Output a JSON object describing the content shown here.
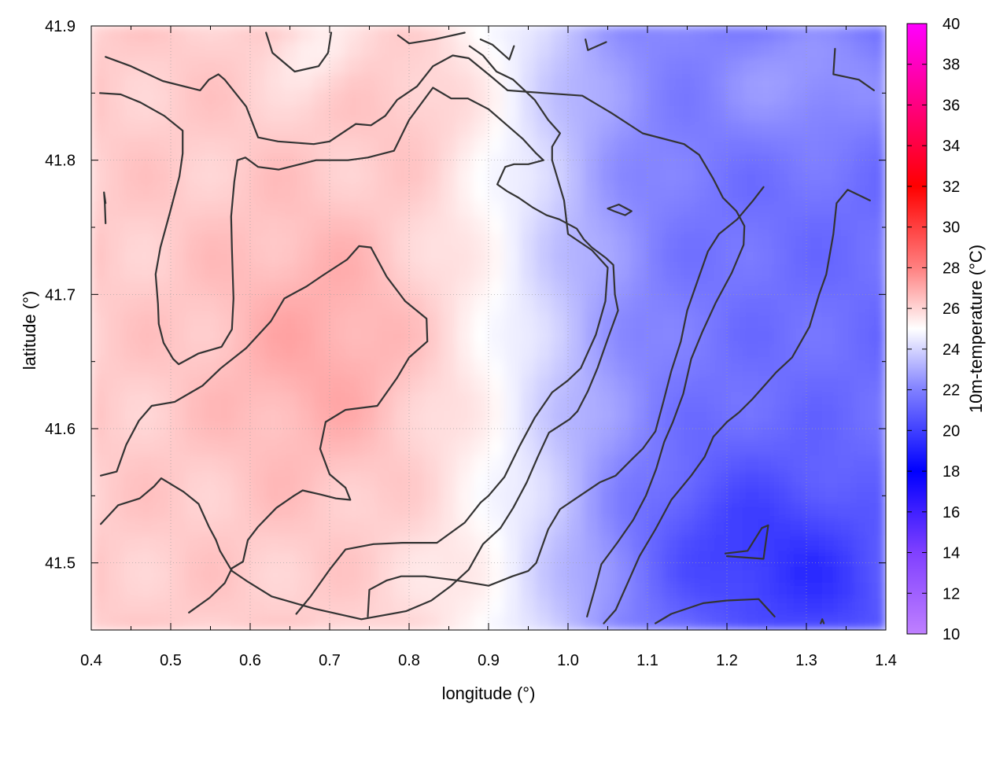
{
  "chart_data": {
    "type": "heatmap",
    "xlabel": "longitude (°)",
    "ylabel": "latitude (°)",
    "colorbar_label": "10m-temperature (°C)",
    "xlim": [
      0.4,
      1.4
    ],
    "ylim": [
      41.45,
      41.9
    ],
    "x_ticks": [
      0.4,
      0.5,
      0.6,
      0.7,
      0.8,
      0.9,
      1.0,
      1.1,
      1.2,
      1.3,
      1.4
    ],
    "x_tick_labels": [
      "0.4",
      "0.5",
      "0.6",
      "0.7",
      "0.8",
      "0.9",
      "1.0",
      "1.1",
      "1.2",
      "1.3",
      "1.4"
    ],
    "y_ticks": [
      41.5,
      41.6,
      41.7,
      41.8,
      41.9
    ],
    "y_tick_labels": [
      "41.5",
      "41.6",
      "41.7",
      "41.8",
      "41.9"
    ],
    "colorbar_range": [
      10,
      40
    ],
    "colorbar_ticks": [
      10,
      12,
      14,
      16,
      18,
      20,
      22,
      24,
      26,
      28,
      30,
      32,
      34,
      36,
      38,
      40
    ],
    "colorbar_tick_labels": [
      "10",
      "12",
      "14",
      "16",
      "18",
      "20",
      "22",
      "24",
      "26",
      "28",
      "30",
      "32",
      "34",
      "36",
      "38",
      "40"
    ],
    "colormap": [
      {
        "value": 10,
        "color": "#bf80ff"
      },
      {
        "value": 14,
        "color": "#8040ff"
      },
      {
        "value": 18,
        "color": "#0000ff"
      },
      {
        "value": 22,
        "color": "#8080ff"
      },
      {
        "value": 25,
        "color": "#ffffff"
      },
      {
        "value": 28,
        "color": "#ff8080"
      },
      {
        "value": 32,
        "color": "#ff0000"
      },
      {
        "value": 36,
        "color": "#ff0080"
      },
      {
        "value": 40,
        "color": "#ff00ff"
      }
    ],
    "grid": true,
    "legend": "colorbar-right",
    "contour_color": "#333333",
    "contours": [
      [
        [
          0.418,
          41.877
        ],
        [
          0.45,
          41.87
        ],
        [
          0.49,
          41.859
        ],
        [
          0.537,
          41.852
        ],
        [
          0.548,
          41.86
        ],
        [
          0.56,
          41.864
        ],
        [
          0.568,
          41.86
        ],
        [
          0.595,
          41.84
        ],
        [
          0.61,
          41.817
        ],
        [
          0.635,
          41.814
        ],
        [
          0.68,
          41.812
        ],
        [
          0.7,
          41.814
        ],
        [
          0.733,
          41.827
        ],
        [
          0.752,
          41.826
        ],
        [
          0.77,
          41.833
        ],
        [
          0.785,
          41.845
        ],
        [
          0.81,
          41.855
        ],
        [
          0.83,
          41.87
        ],
        [
          0.855,
          41.878
        ],
        [
          0.875,
          41.876
        ],
        [
          0.904,
          41.862
        ],
        [
          0.924,
          41.852
        ],
        [
          0.97,
          41.85
        ],
        [
          1.018,
          41.848
        ],
        [
          1.055,
          41.835
        ],
        [
          1.094,
          41.82
        ],
        [
          1.146,
          41.812
        ],
        [
          1.165,
          41.804
        ],
        [
          1.183,
          41.786
        ],
        [
          1.195,
          41.772
        ],
        [
          1.212,
          41.762
        ],
        [
          1.222,
          41.751
        ],
        [
          1.221,
          41.737
        ],
        [
          1.206,
          41.716
        ],
        [
          1.186,
          41.694
        ],
        [
          1.169,
          41.672
        ],
        [
          1.155,
          41.652
        ],
        [
          1.145,
          41.626
        ],
        [
          1.132,
          41.605
        ],
        [
          1.121,
          41.59
        ],
        [
          1.111,
          41.57
        ],
        [
          1.098,
          41.55
        ],
        [
          1.082,
          41.532
        ],
        [
          1.062,
          41.515
        ],
        [
          1.042,
          41.499
        ],
        [
          1.034,
          41.481
        ],
        [
          1.024,
          41.46
        ]
      ],
      [
        [
          0.411,
          41.85
        ],
        [
          0.437,
          41.849
        ],
        [
          0.462,
          41.843
        ],
        [
          0.492,
          41.833
        ],
        [
          0.515,
          41.822
        ],
        [
          0.515,
          41.805
        ],
        [
          0.511,
          41.788
        ],
        [
          0.499,
          41.761
        ],
        [
          0.487,
          41.735
        ],
        [
          0.481,
          41.715
        ],
        [
          0.484,
          41.693
        ],
        [
          0.485,
          41.678
        ],
        [
          0.491,
          41.664
        ],
        [
          0.503,
          41.652
        ],
        [
          0.51,
          41.648
        ],
        [
          0.535,
          41.656
        ],
        [
          0.564,
          41.661
        ],
        [
          0.577,
          41.674
        ],
        [
          0.579,
          41.697
        ],
        [
          0.577,
          41.734
        ],
        [
          0.576,
          41.758
        ],
        [
          0.58,
          41.784
        ],
        [
          0.584,
          41.8
        ],
        [
          0.594,
          41.802
        ],
        [
          0.61,
          41.795
        ],
        [
          0.636,
          41.793
        ],
        [
          0.683,
          41.8
        ],
        [
          0.723,
          41.8
        ],
        [
          0.748,
          41.802
        ],
        [
          0.781,
          41.807
        ],
        [
          0.8,
          41.83
        ],
        [
          0.83,
          41.854
        ],
        [
          0.853,
          41.846
        ],
        [
          0.874,
          41.846
        ],
        [
          0.9,
          41.838
        ],
        [
          0.943,
          41.816
        ],
        [
          0.96,
          41.805
        ],
        [
          0.969,
          41.8
        ],
        [
          0.95,
          41.797
        ],
        [
          0.932,
          41.797
        ],
        [
          0.921,
          41.795
        ],
        [
          0.911,
          41.782
        ],
        [
          0.923,
          41.777
        ],
        [
          0.938,
          41.772
        ],
        [
          0.955,
          41.765
        ],
        [
          0.973,
          41.759
        ],
        [
          0.989,
          41.756
        ],
        [
          1.011,
          41.749
        ],
        [
          1.02,
          41.741
        ],
        [
          1.03,
          41.735
        ],
        [
          1.048,
          41.727
        ],
        [
          1.057,
          41.722
        ],
        [
          1.059,
          41.7
        ],
        [
          1.063,
          41.688
        ],
        [
          1.05,
          41.667
        ],
        [
          1.037,
          41.645
        ],
        [
          1.025,
          41.628
        ],
        [
          1.012,
          41.613
        ],
        [
          1.002,
          41.607
        ],
        [
          0.976,
          41.597
        ],
        [
          0.962,
          41.579
        ],
        [
          0.948,
          41.56
        ],
        [
          0.931,
          41.541
        ],
        [
          0.915,
          41.526
        ],
        [
          0.893,
          41.514
        ],
        [
          0.875,
          41.495
        ],
        [
          0.853,
          41.483
        ],
        [
          0.828,
          41.472
        ],
        [
          0.796,
          41.464
        ],
        [
          0.74,
          41.458
        ],
        [
          0.68,
          41.466
        ],
        [
          0.627,
          41.475
        ],
        [
          0.597,
          41.486
        ],
        [
          0.577,
          41.494
        ],
        [
          0.562,
          41.509
        ],
        [
          0.557,
          41.517
        ],
        [
          0.548,
          41.527
        ],
        [
          0.535,
          41.544
        ],
        [
          0.516,
          41.553
        ],
        [
          0.488,
          41.563
        ],
        [
          0.479,
          41.557
        ],
        [
          0.461,
          41.548
        ],
        [
          0.434,
          41.543
        ],
        [
          0.412,
          41.529
        ]
      ],
      [
        [
          0.412,
          41.565
        ],
        [
          0.432,
          41.568
        ],
        [
          0.444,
          41.588
        ],
        [
          0.46,
          41.606
        ],
        [
          0.476,
          41.617
        ],
        [
          0.505,
          41.62
        ],
        [
          0.54,
          41.632
        ],
        [
          0.563,
          41.645
        ],
        [
          0.595,
          41.66
        ],
        [
          0.626,
          41.68
        ],
        [
          0.643,
          41.697
        ],
        [
          0.671,
          41.706
        ],
        [
          0.691,
          41.714
        ],
        [
          0.722,
          41.726
        ],
        [
          0.737,
          41.736
        ],
        [
          0.752,
          41.735
        ],
        [
          0.772,
          41.713
        ],
        [
          0.795,
          41.695
        ],
        [
          0.822,
          41.682
        ],
        [
          0.823,
          41.665
        ],
        [
          0.8,
          41.653
        ],
        [
          0.785,
          41.638
        ],
        [
          0.76,
          41.617
        ],
        [
          0.72,
          41.614
        ],
        [
          0.695,
          41.605
        ],
        [
          0.688,
          41.585
        ],
        [
          0.7,
          41.566
        ],
        [
          0.72,
          41.556
        ],
        [
          0.726,
          41.547
        ],
        [
          0.708,
          41.548
        ],
        [
          0.688,
          41.551
        ],
        [
          0.666,
          41.554
        ],
        [
          0.655,
          41.55
        ],
        [
          0.633,
          41.541
        ],
        [
          0.61,
          41.527
        ],
        [
          0.597,
          41.517
        ],
        [
          0.591,
          41.501
        ],
        [
          0.577,
          41.496
        ],
        [
          0.568,
          41.485
        ],
        [
          0.549,
          41.474
        ],
        [
          0.523,
          41.463
        ]
      ],
      [
        [
          0.658,
          41.462
        ],
        [
          0.676,
          41.475
        ],
        [
          0.7,
          41.495
        ],
        [
          0.72,
          41.51
        ],
        [
          0.755,
          41.514
        ],
        [
          0.792,
          41.515
        ],
        [
          0.835,
          41.515
        ],
        [
          0.87,
          41.53
        ],
        [
          0.89,
          41.545
        ],
        [
          0.9,
          41.55
        ],
        [
          0.92,
          41.564
        ],
        [
          0.939,
          41.587
        ],
        [
          0.958,
          41.608
        ],
        [
          0.98,
          41.627
        ],
        [
          1.0,
          41.636
        ],
        [
          1.016,
          41.645
        ],
        [
          1.035,
          41.67
        ],
        [
          1.047,
          41.695
        ],
        [
          1.05,
          41.72
        ],
        [
          1.03,
          41.733
        ],
        [
          1.0,
          41.745
        ],
        [
          0.995,
          41.77
        ],
        [
          0.98,
          41.8
        ],
        [
          0.98,
          41.81
        ],
        [
          0.99,
          41.82
        ],
        [
          0.975,
          41.83
        ],
        [
          0.958,
          41.845
        ],
        [
          0.931,
          41.86
        ],
        [
          0.91,
          41.866
        ],
        [
          0.893,
          41.878
        ],
        [
          0.876,
          41.885
        ]
      ],
      [
        [
          0.748,
          41.46
        ],
        [
          0.75,
          41.48
        ],
        [
          0.772,
          41.487
        ],
        [
          0.79,
          41.49
        ],
        [
          0.82,
          41.49
        ],
        [
          0.86,
          41.487
        ],
        [
          0.9,
          41.483
        ],
        [
          0.93,
          41.49
        ],
        [
          0.95,
          41.494
        ],
        [
          0.96,
          41.5
        ],
        [
          0.975,
          41.525
        ],
        [
          0.99,
          41.54
        ],
        [
          1.01,
          41.548
        ],
        [
          1.04,
          41.56
        ],
        [
          1.06,
          41.565
        ],
        [
          1.08,
          41.577
        ],
        [
          1.094,
          41.585
        ],
        [
          1.11,
          41.598
        ],
        [
          1.12,
          41.62
        ],
        [
          1.13,
          41.643
        ],
        [
          1.142,
          41.665
        ],
        [
          1.15,
          41.688
        ],
        [
          1.163,
          41.71
        ],
        [
          1.176,
          41.732
        ],
        [
          1.19,
          41.745
        ],
        [
          1.213,
          41.756
        ],
        [
          1.233,
          41.77
        ],
        [
          1.246,
          41.78
        ]
      ],
      [
        [
          1.045,
          41.455
        ],
        [
          1.06,
          41.465
        ],
        [
          1.075,
          41.485
        ],
        [
          1.09,
          41.505
        ],
        [
          1.11,
          41.525
        ],
        [
          1.13,
          41.547
        ],
        [
          1.155,
          41.565
        ],
        [
          1.172,
          41.579
        ],
        [
          1.183,
          41.594
        ],
        [
          1.2,
          41.605
        ],
        [
          1.215,
          41.612
        ],
        [
          1.232,
          41.622
        ],
        [
          1.25,
          41.634
        ],
        [
          1.262,
          41.642
        ],
        [
          1.282,
          41.653
        ],
        [
          1.304,
          41.676
        ],
        [
          1.316,
          41.7
        ],
        [
          1.325,
          41.715
        ],
        [
          1.334,
          41.745
        ],
        [
          1.338,
          41.768
        ],
        [
          1.352,
          41.778
        ],
        [
          1.38,
          41.77
        ]
      ],
      [
        [
          1.11,
          41.455
        ],
        [
          1.13,
          41.462
        ],
        [
          1.17,
          41.47
        ],
        [
          1.2,
          41.472
        ],
        [
          1.24,
          41.473
        ],
        [
          1.26,
          41.46
        ]
      ],
      [
        [
          1.198,
          41.507
        ],
        [
          1.226,
          41.509
        ],
        [
          1.244,
          41.526
        ],
        [
          1.252,
          41.528
        ],
        [
          1.25,
          41.52
        ],
        [
          1.246,
          41.503
        ],
        [
          1.2,
          41.505
        ]
      ],
      [
        [
          1.05,
          41.764
        ],
        [
          1.064,
          41.767
        ],
        [
          1.08,
          41.762
        ],
        [
          1.072,
          41.759
        ],
        [
          1.058,
          41.762
        ],
        [
          1.05,
          41.764
        ]
      ],
      [
        [
          0.418,
          41.753
        ],
        [
          0.417,
          41.768
        ],
        [
          0.416,
          41.776
        ],
        [
          0.418,
          41.768
        ]
      ],
      [
        [
          1.336,
          41.883
        ],
        [
          1.334,
          41.864
        ],
        [
          1.366,
          41.86
        ],
        [
          1.385,
          41.852
        ]
      ],
      [
        [
          0.62,
          41.895
        ],
        [
          0.628,
          41.88
        ],
        [
          0.656,
          41.866
        ],
        [
          0.686,
          41.87
        ],
        [
          0.698,
          41.88
        ],
        [
          0.702,
          41.895
        ]
      ],
      [
        [
          0.786,
          41.893
        ],
        [
          0.8,
          41.887
        ],
        [
          0.832,
          41.89
        ],
        [
          0.87,
          41.895
        ]
      ],
      [
        [
          0.89,
          41.89
        ],
        [
          0.905,
          41.886
        ],
        [
          0.926,
          41.875
        ],
        [
          0.932,
          41.885
        ]
      ],
      [
        [
          1.022,
          41.89
        ],
        [
          1.025,
          41.882
        ],
        [
          1.048,
          41.888
        ]
      ],
      [
        [
          1.318,
          41.455
        ],
        [
          1.32,
          41.458
        ],
        [
          1.322,
          41.455
        ]
      ]
    ]
  }
}
